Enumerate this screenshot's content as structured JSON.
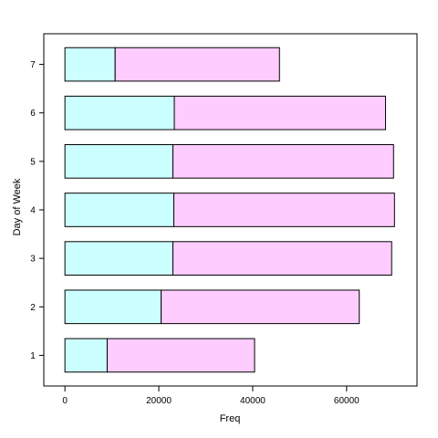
{
  "chart_data": {
    "type": "bar",
    "orientation": "horizontal",
    "stacked": true,
    "categories": [
      "1",
      "2",
      "3",
      "4",
      "5",
      "6",
      "7"
    ],
    "series": [
      {
        "values": [
          9000,
          20500,
          23000,
          23200,
          23000,
          23300,
          10700
        ],
        "color": "#ccffff"
      },
      {
        "values": [
          31400,
          42200,
          46600,
          47000,
          47000,
          45000,
          35000
        ],
        "color": "#ffccff"
      }
    ],
    "xlabel": "Freq",
    "ylabel": "Day of Week",
    "xticks": [
      0,
      20000,
      40000,
      60000
    ],
    "xlim": [
      -4500,
      75000
    ],
    "grid": false
  }
}
